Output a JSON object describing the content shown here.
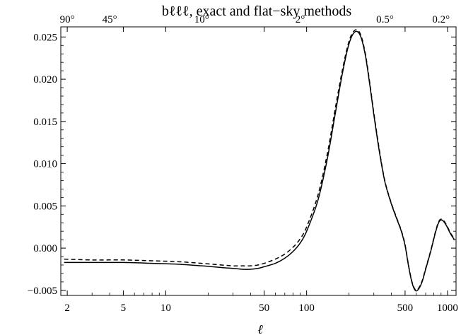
{
  "chart_data": {
    "type": "line",
    "title": "bℓℓℓ,  exact and flat−sky methods",
    "xlabel": "ℓ",
    "ylabel": "",
    "xscale": "log",
    "xlim": [
      1.8,
      1150
    ],
    "ylim": [
      -0.0056,
      0.0262
    ],
    "grid": false,
    "x_ticks": [
      {
        "value": 2,
        "label": "2"
      },
      {
        "value": 5,
        "label": "5"
      },
      {
        "value": 10,
        "label": "10"
      },
      {
        "value": 50,
        "label": "50"
      },
      {
        "value": 100,
        "label": "100"
      },
      {
        "value": 500,
        "label": "500"
      },
      {
        "value": 1000,
        "label": "1000"
      }
    ],
    "x_minor_ticks": [
      3,
      4,
      6,
      7,
      8,
      9,
      20,
      30,
      40,
      60,
      70,
      80,
      90,
      200,
      300,
      400,
      600,
      700,
      800,
      900
    ],
    "y_ticks": [
      {
        "value": -0.005,
        "label": "−0.005"
      },
      {
        "value": 0.0,
        "label": "0.000"
      },
      {
        "value": 0.005,
        "label": "0.005"
      },
      {
        "value": 0.01,
        "label": "0.010"
      },
      {
        "value": 0.015,
        "label": "0.015"
      },
      {
        "value": 0.02,
        "label": "0.020"
      },
      {
        "value": 0.025,
        "label": "0.025"
      }
    ],
    "top_ticks": [
      {
        "value": 2,
        "label": "90°"
      },
      {
        "value": 4,
        "label": "45°"
      },
      {
        "value": 18,
        "label": "10°"
      },
      {
        "value": 90,
        "label": "2°"
      },
      {
        "value": 360,
        "label": "0.5°"
      },
      {
        "value": 900,
        "label": "0.2°"
      }
    ],
    "series": [
      {
        "style": "solid",
        "x": [
          1.9,
          3,
          5,
          8,
          12,
          18,
          25,
          30,
          35,
          40,
          45,
          50,
          60,
          70,
          80,
          90,
          100,
          120,
          140,
          160,
          180,
          200,
          220,
          240,
          260,
          280,
          300,
          330,
          360,
          400,
          440,
          470,
          500,
          530,
          560,
          590,
          620,
          660,
          700,
          760,
          820,
          870,
          920,
          980,
          1050,
          1120
        ],
        "y": [
          -0.0017,
          -0.0017,
          -0.0017,
          -0.0018,
          -0.0019,
          -0.0021,
          -0.0023,
          -0.0024,
          -0.0025,
          -0.0025,
          -0.0024,
          -0.0022,
          -0.0018,
          -0.0012,
          -0.0004,
          0.0006,
          0.002,
          0.0056,
          0.0105,
          0.016,
          0.0208,
          0.0242,
          0.0256,
          0.0252,
          0.023,
          0.0195,
          0.0158,
          0.0112,
          0.0078,
          0.0052,
          0.0033,
          0.002,
          0.0003,
          -0.0022,
          -0.0041,
          -0.005,
          -0.0049,
          -0.004,
          -0.0025,
          -0.0004,
          0.0018,
          0.0031,
          0.0033,
          0.0027,
          0.0017,
          0.001
        ]
      },
      {
        "style": "dashed",
        "x": [
          1.9,
          3,
          5,
          8,
          12,
          18,
          25,
          30,
          35,
          40,
          45,
          50,
          60,
          70,
          80,
          90,
          100,
          120,
          140,
          160,
          180,
          200,
          220,
          240,
          260,
          280,
          300,
          330,
          360,
          400,
          440,
          470,
          500,
          530,
          560,
          590,
          620,
          660,
          700,
          760,
          820,
          870,
          920,
          980,
          1050,
          1120
        ],
        "y": [
          -0.0013,
          -0.0014,
          -0.0014,
          -0.0015,
          -0.0016,
          -0.0018,
          -0.002,
          -0.0021,
          -0.0021,
          -0.0021,
          -0.002,
          -0.0018,
          -0.0013,
          -0.0007,
          0.0001,
          0.0011,
          0.0025,
          0.0062,
          0.0111,
          0.0166,
          0.0212,
          0.0245,
          0.0258,
          0.0254,
          0.0232,
          0.0197,
          0.016,
          0.0114,
          0.0079,
          0.0053,
          0.0034,
          0.0021,
          0.0004,
          -0.0021,
          -0.004,
          -0.0049,
          -0.0048,
          -0.0039,
          -0.0024,
          -0.0003,
          0.0019,
          0.0032,
          0.0034,
          0.0028,
          0.0018,
          0.0011
        ]
      }
    ]
  }
}
